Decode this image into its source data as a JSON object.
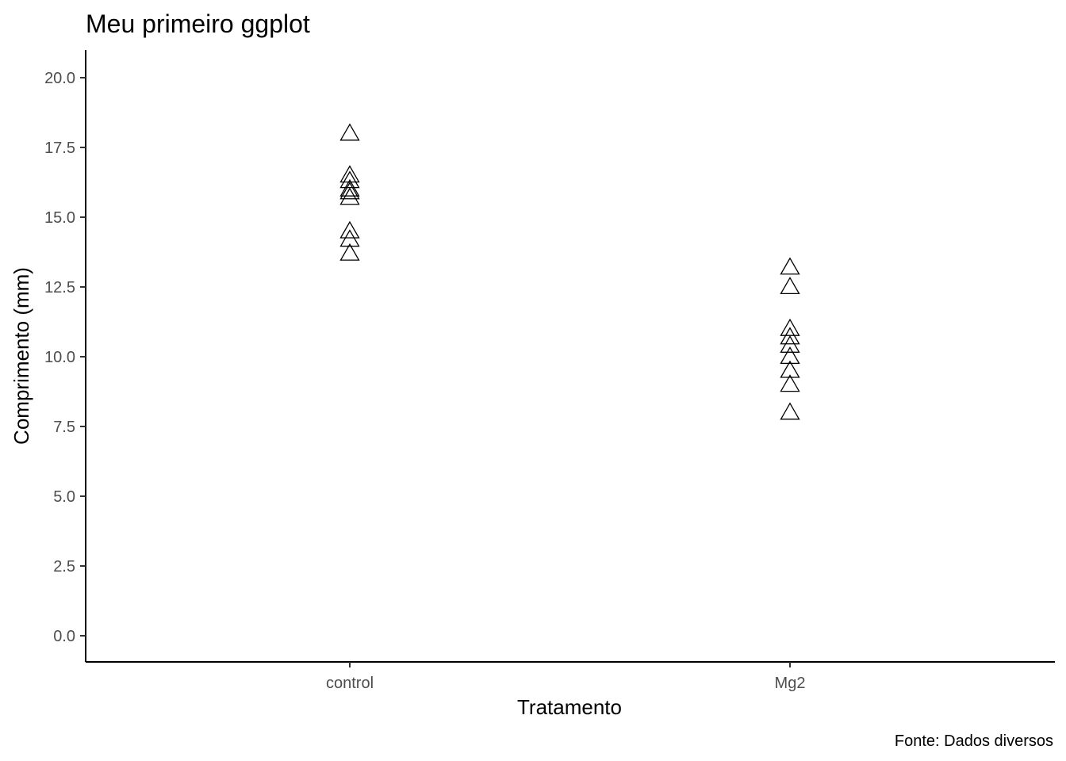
{
  "chart_data": {
    "type": "scatter",
    "title": "Meu primeiro ggplot",
    "xlabel": "Tratamento",
    "ylabel": "Comprimento (mm)",
    "caption": "Fonte: Dados diversos",
    "categories": [
      "control",
      "Mg2"
    ],
    "ylim": [
      -0.9,
      21
    ],
    "yticks": [
      0.0,
      2.5,
      5.0,
      7.5,
      10.0,
      12.5,
      15.0,
      17.5,
      20.0
    ],
    "ytick_labels": [
      "0.0",
      "2.5",
      "5.0",
      "7.5",
      "10.0",
      "12.5",
      "15.0",
      "17.5",
      "20.0"
    ],
    "grid": false,
    "marker": "open-triangle",
    "series": [
      {
        "category": "control",
        "values": [
          18.0,
          16.5,
          16.3,
          16.0,
          15.9,
          15.7,
          14.5,
          14.2,
          13.7
        ]
      },
      {
        "category": "Mg2",
        "values": [
          13.2,
          12.5,
          11.0,
          10.7,
          10.4,
          10.0,
          9.5,
          9.0,
          8.0
        ]
      }
    ]
  }
}
